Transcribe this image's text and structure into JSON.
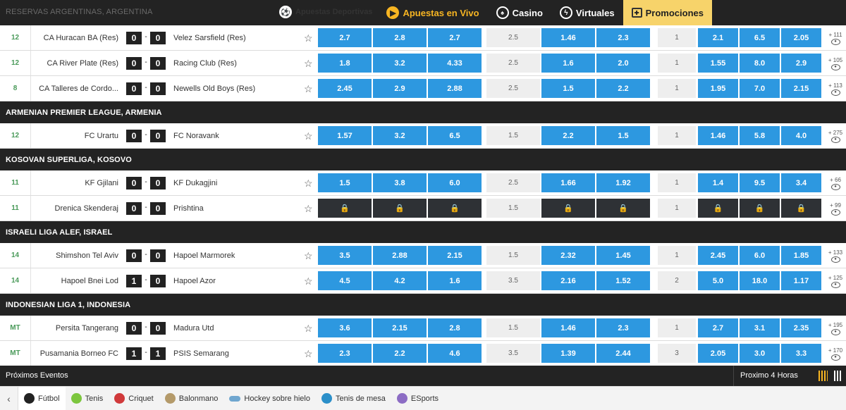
{
  "breadcrumb": "RESERVAS ARGENTINAS, ARGENTINA",
  "nav": [
    {
      "label": "Apuestas Deportivas",
      "icon": "soccer-ball-icon"
    },
    {
      "label": "Apuestas en Vivo",
      "icon": "play-icon"
    },
    {
      "label": "Casino",
      "icon": "casino-chip-icon"
    },
    {
      "label": "Virtuales",
      "icon": "virtual-icon"
    },
    {
      "label": "Promociones",
      "icon": "gift-icon"
    }
  ],
  "colors": {
    "accent": "#f7b522",
    "odds": "#2d98e0",
    "dark": "#232323",
    "promo": "#f7d36a"
  },
  "blocks": [
    {
      "kind": "match",
      "minute": "12",
      "home": "CA Huracan BA (Res)",
      "hs": "0",
      "as": "0",
      "away": "Velez Sarsfield (Res)",
      "o1": [
        "2.7",
        "2.8",
        "2.7"
      ],
      "l1": "2.5",
      "o2": [
        "1.46",
        "2.3"
      ],
      "l2": "1",
      "o3": [
        "2.1",
        "6.5",
        "2.05"
      ],
      "more": "+ 111"
    },
    {
      "kind": "match",
      "minute": "12",
      "home": "CA River Plate (Res)",
      "hs": "0",
      "as": "0",
      "away": "Racing Club (Res)",
      "o1": [
        "1.8",
        "3.2",
        "4.33"
      ],
      "l1": "2.5",
      "o2": [
        "1.6",
        "2.0"
      ],
      "l2": "1",
      "o3": [
        "1.55",
        "8.0",
        "2.9"
      ],
      "more": "+ 105"
    },
    {
      "kind": "match",
      "minute": "8",
      "home": "CA Talleres de Cordo...",
      "hs": "0",
      "as": "0",
      "away": "Newells Old Boys (Res)",
      "o1": [
        "2.45",
        "2.9",
        "2.88"
      ],
      "l1": "2.5",
      "o2": [
        "1.5",
        "2.2"
      ],
      "l2": "1",
      "o3": [
        "1.95",
        "7.0",
        "2.15"
      ],
      "more": "+ 113"
    },
    {
      "kind": "league",
      "name": "ARMENIAN PREMIER LEAGUE, ARMENIA"
    },
    {
      "kind": "match",
      "minute": "12",
      "home": "FC Urartu",
      "hs": "0",
      "as": "0",
      "away": "FC Noravank",
      "o1": [
        "1.57",
        "3.2",
        "6.5"
      ],
      "l1": "1.5",
      "o2": [
        "2.2",
        "1.5"
      ],
      "l2": "1",
      "o3": [
        "1.46",
        "5.8",
        "4.0"
      ],
      "more": "+ 275"
    },
    {
      "kind": "league",
      "name": "KOSOVAN SUPERLIGA, KOSOVO"
    },
    {
      "kind": "match",
      "minute": "11",
      "home": "KF Gjilani",
      "hs": "0",
      "as": "0",
      "away": "KF Dukagjini",
      "o1": [
        "1.5",
        "3.8",
        "6.0"
      ],
      "l1": "2.5",
      "o2": [
        "1.66",
        "1.92"
      ],
      "l2": "1",
      "o3": [
        "1.4",
        "9.5",
        "3.4"
      ],
      "more": "+ 66"
    },
    {
      "kind": "match",
      "minute": "11",
      "home": "Drenica Skenderaj",
      "hs": "0",
      "as": "0",
      "away": "Prishtina",
      "locked": true,
      "o1": [
        "",
        "",
        ""
      ],
      "l1": "1.5",
      "o2": [
        "",
        ""
      ],
      "l2": "1",
      "o3": [
        "",
        "",
        ""
      ],
      "more": "+ 99"
    },
    {
      "kind": "league",
      "name": "ISRAELI LIGA ALEF, ISRAEL"
    },
    {
      "kind": "match",
      "minute": "14",
      "home": "Shimshon Tel Aviv",
      "hs": "0",
      "as": "0",
      "away": "Hapoel Marmorek",
      "o1": [
        "3.5",
        "2.88",
        "2.15"
      ],
      "l1": "1.5",
      "o2": [
        "2.32",
        "1.45"
      ],
      "l2": "1",
      "o3": [
        "2.45",
        "6.0",
        "1.85"
      ],
      "more": "+ 133"
    },
    {
      "kind": "match",
      "minute": "14",
      "home": "Hapoel Bnei Lod",
      "hs": "1",
      "as": "0",
      "away": "Hapoel Azor",
      "o1": [
        "4.5",
        "4.2",
        "1.6"
      ],
      "l1": "3.5",
      "o2": [
        "2.16",
        "1.52"
      ],
      "l2": "2",
      "o3": [
        "5.0",
        "18.0",
        "1.17"
      ],
      "more": "+ 125"
    },
    {
      "kind": "league",
      "name": "INDONESIAN LIGA 1, INDONESIA"
    },
    {
      "kind": "match",
      "minute": "MT",
      "home": "Persita Tangerang",
      "hs": "0",
      "as": "0",
      "away": "Madura Utd",
      "o1": [
        "3.6",
        "2.15",
        "2.8"
      ],
      "l1": "1.5",
      "o2": [
        "1.46",
        "2.3"
      ],
      "l2": "1",
      "o3": [
        "2.7",
        "3.1",
        "2.35"
      ],
      "more": "+ 195"
    },
    {
      "kind": "match",
      "minute": "MT",
      "home": "Pusamania Borneo FC",
      "hs": "1",
      "as": "1",
      "away": "PSIS Semarang",
      "o1": [
        "2.3",
        "2.2",
        "4.6"
      ],
      "l1": "3.5",
      "o2": [
        "1.39",
        "2.44"
      ],
      "l2": "3",
      "o3": [
        "2.05",
        "3.0",
        "3.3"
      ],
      "more": "+ 170"
    }
  ],
  "upcoming": {
    "title": "Próximos Eventos",
    "range": "Proximo 4 Horas"
  },
  "sports": [
    {
      "label": "Fútbol",
      "icon": "soccer-ball-icon",
      "color": "#222222",
      "active": true
    },
    {
      "label": "Tenis",
      "icon": "tennis-ball-icon",
      "color": "#7cc63e"
    },
    {
      "label": "Criquet",
      "icon": "cricket-ball-icon",
      "color": "#d0393a"
    },
    {
      "label": "Balonmano",
      "icon": "handball-icon",
      "color": "#b49a6a"
    },
    {
      "label": "Hockey sobre hielo",
      "icon": "ice-hockey-icon",
      "color": "#6fa6cf"
    },
    {
      "label": "Tenis de mesa",
      "icon": "table-tennis-icon",
      "color": "#2b8fc9"
    },
    {
      "label": "ESports",
      "icon": "esports-icon",
      "color": "#8c6cc4"
    }
  ]
}
